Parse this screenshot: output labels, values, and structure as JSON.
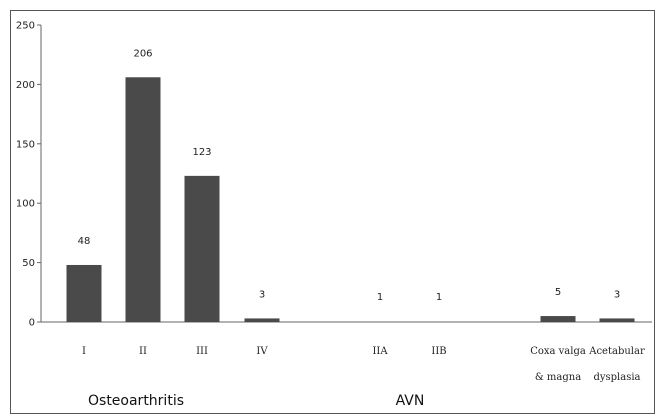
{
  "chart_data": {
    "type": "bar",
    "categories": [
      "I",
      "II",
      "III",
      "IV",
      "IIA",
      "IIB",
      "Coxa valga & magna",
      "Acetabular dysplasia"
    ],
    "category_lines": [
      [
        "I"
      ],
      [
        "II"
      ],
      [
        "III"
      ],
      [
        "IV"
      ],
      [
        "IIA"
      ],
      [
        "IIB"
      ],
      [
        "Coxa valga",
        "& magna"
      ],
      [
        "Acetabular",
        "dysplasia"
      ]
    ],
    "values": [
      48,
      206,
      123,
      3,
      1,
      1,
      5,
      3
    ],
    "data_labels": [
      "48",
      "206",
      "123",
      "3",
      "1",
      "1",
      "5",
      "3"
    ],
    "groups": [
      {
        "label": "Osteoarthritis",
        "categories": [
          "I",
          "II",
          "III",
          "IV"
        ]
      },
      {
        "label": "AVN",
        "categories": [
          "IIA",
          "IIB"
        ]
      }
    ],
    "ylim": [
      0,
      250
    ],
    "yticks": [
      0,
      50,
      100,
      150,
      200,
      250
    ],
    "title": "",
    "xlabel": "",
    "ylabel": "",
    "grid": false,
    "bar_color": "#4a4a4a"
  }
}
